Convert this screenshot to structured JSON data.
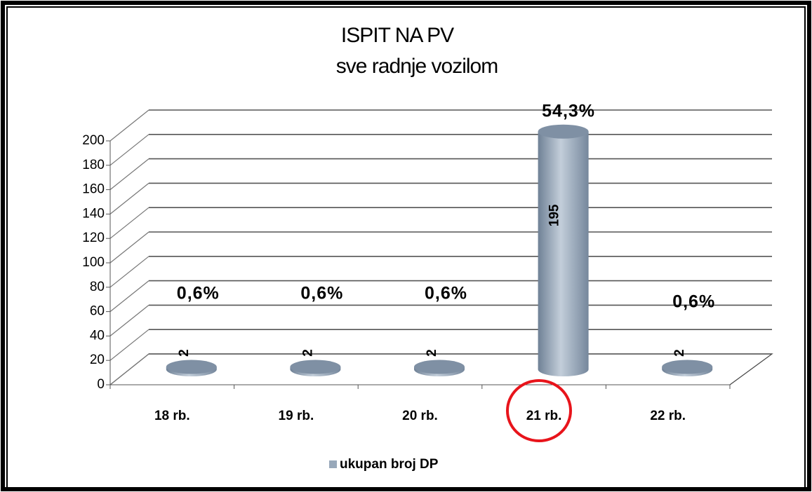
{
  "chart_data": {
    "type": "bar3d",
    "title": "ISPIT NA PV",
    "subtitle": "sve radnje vozilom",
    "categories": [
      "18 rb.",
      "19 rb.",
      "20 rb.",
      "21 rb.",
      "22 rb."
    ],
    "series": [
      {
        "name": "ukupan broj DP",
        "color": "#98a8ba",
        "values": [
          2,
          2,
          2,
          195,
          2
        ]
      }
    ],
    "annotations": [
      "0,6%",
      "0,6%",
      "0,6%",
      "54,3%",
      "0,6%"
    ],
    "ylim": [
      0,
      200
    ],
    "yticks": [
      0,
      20,
      40,
      60,
      80,
      100,
      120,
      140,
      160,
      180,
      200
    ],
    "grid": true,
    "legend": "bottom"
  }
}
